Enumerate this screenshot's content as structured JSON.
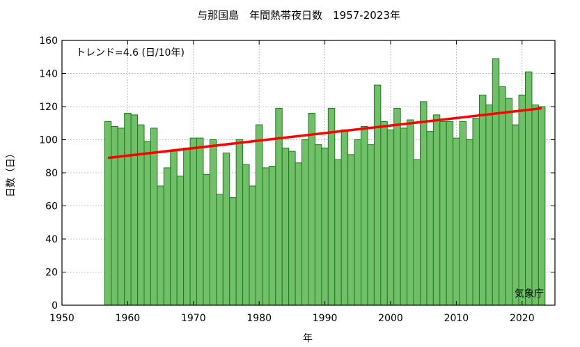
{
  "chart_data": {
    "type": "bar",
    "title": "与那国島　年間熱帯夜日数　1957-2023年",
    "xlabel": "年",
    "ylabel": "日数（日）",
    "xlim": [
      1950,
      2025
    ],
    "ylim": [
      0,
      160
    ],
    "xticks": [
      1950,
      1960,
      1970,
      1980,
      1990,
      2000,
      2010,
      2020
    ],
    "yticks": [
      0,
      20,
      40,
      60,
      80,
      100,
      120,
      140,
      160
    ],
    "grid": true,
    "bar_color": "#72bf6a",
    "bar_edge_color": "#1d7a1d",
    "trend_color": "#ff0000",
    "x": [
      1957,
      1958,
      1959,
      1960,
      1961,
      1962,
      1963,
      1964,
      1965,
      1966,
      1967,
      1968,
      1969,
      1970,
      1971,
      1972,
      1973,
      1974,
      1975,
      1976,
      1977,
      1978,
      1979,
      1980,
      1981,
      1982,
      1983,
      1984,
      1985,
      1986,
      1987,
      1988,
      1989,
      1990,
      1991,
      1992,
      1993,
      1994,
      1995,
      1996,
      1997,
      1998,
      1999,
      2000,
      2001,
      2002,
      2003,
      2004,
      2005,
      2006,
      2007,
      2008,
      2009,
      2010,
      2011,
      2012,
      2013,
      2014,
      2015,
      2016,
      2017,
      2018,
      2019,
      2020,
      2021,
      2022,
      2023
    ],
    "values": [
      111,
      108,
      107,
      116,
      115,
      109,
      99,
      107,
      72,
      83,
      93,
      78,
      95,
      101,
      101,
      79,
      100,
      67,
      92,
      65,
      100,
      85,
      72,
      109,
      83,
      84,
      119,
      95,
      93,
      86,
      100,
      116,
      97,
      95,
      119,
      88,
      106,
      91,
      100,
      108,
      97,
      133,
      111,
      106,
      119,
      107,
      112,
      88,
      123,
      105,
      115,
      111,
      111,
      101,
      111,
      100,
      113,
      127,
      121,
      149,
      132,
      125,
      109,
      127,
      141,
      121,
      120
    ],
    "trend": {
      "label": "トレンド=4.6 (日/10年)",
      "x": [
        1957,
        2023
      ],
      "y": [
        89,
        119
      ]
    },
    "annotations": [
      {
        "text": "トレンド=4.6 (日/10年)",
        "position": "top-left"
      },
      {
        "text": "気象庁",
        "position": "bottom-right"
      }
    ]
  }
}
